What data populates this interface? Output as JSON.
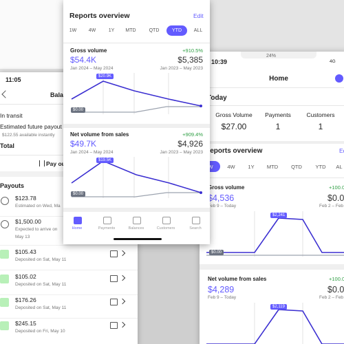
{
  "left_screen": {
    "status_time": "11:05",
    "title": "Balances",
    "in_transit": "In transit",
    "estimated_label": "Estimated future payout",
    "available": "$122.55 available instantly",
    "total": "Total",
    "payout_button": "Pay out",
    "payouts_title": "Payouts",
    "payouts": [
      {
        "amount": "$123.78",
        "detail": "Estimated on Wed, Ma"
      },
      {
        "amount": "$1,500.00",
        "detail": "Expected to arrive on",
        "detail2": "May 13"
      },
      {
        "amount": "$105.43",
        "detail": "Deposited on Sat, May 11"
      },
      {
        "amount": "$105.02",
        "detail": "Deposited on Sat, May 11"
      },
      {
        "amount": "$176.26",
        "detail": "Deposited on Sat, May 11"
      },
      {
        "amount": "$245.15",
        "detail": "Deposited on Fri, May 10"
      }
    ]
  },
  "center_screen": {
    "title": "Reports overview",
    "edit": "Edit",
    "tabs": [
      "1W",
      "4W",
      "1Y",
      "MTD",
      "QTD",
      "YTD",
      "ALL"
    ],
    "metrics": [
      {
        "name": "Gross volume",
        "change": "+910.5%",
        "value": "$54.4K",
        "prev_value": "$5,385",
        "range": "Jan 2024 – May 2024",
        "prev_range": "Jan 2023 – May 2023",
        "peak_label": "$20.9K",
        "min_label": "$0.00"
      },
      {
        "name": "Net volume from sales",
        "change": "+909.4%",
        "value": "$49.7K",
        "prev_value": "$4,926",
        "range": "Jan 2024 – May 2024",
        "prev_range": "Jan 2023 – May 2023",
        "peak_label": "$19.5K",
        "min_label": "$0.00"
      }
    ],
    "nav": [
      "Home",
      "Payments",
      "Balances",
      "Customers",
      "Search"
    ]
  },
  "right_screen": {
    "status_time": "10:39",
    "battery": "24%",
    "network": "4G",
    "title": "Home",
    "today": "Today",
    "stats": [
      {
        "label": "Gross Volume",
        "value": "$27.00"
      },
      {
        "label": "Payments",
        "value": 1
      },
      {
        "label": "Customers",
        "value": 1
      }
    ],
    "reports_title": "Reports overview",
    "edit": "Ed",
    "tabs": [
      "W",
      "4W",
      "1Y",
      "MTD",
      "QTD",
      "YTD",
      "AL"
    ],
    "metrics": [
      {
        "name": "Gross volume",
        "change": "+100.0",
        "value": "$4,536",
        "prev_value": "$0.0",
        "range": "Feb 9 – Today",
        "prev_range": "Feb 2 – Feb",
        "peak_label": "$2,241",
        "min_label": "$0.00"
      },
      {
        "name": "Net volume from sales",
        "change": "+100.0",
        "value": "$4,289",
        "prev_value": "$0.0",
        "range": "Feb 9 – Today",
        "prev_range": "Feb 2 – Feb",
        "peak_label": "$2,119"
      }
    ]
  }
}
